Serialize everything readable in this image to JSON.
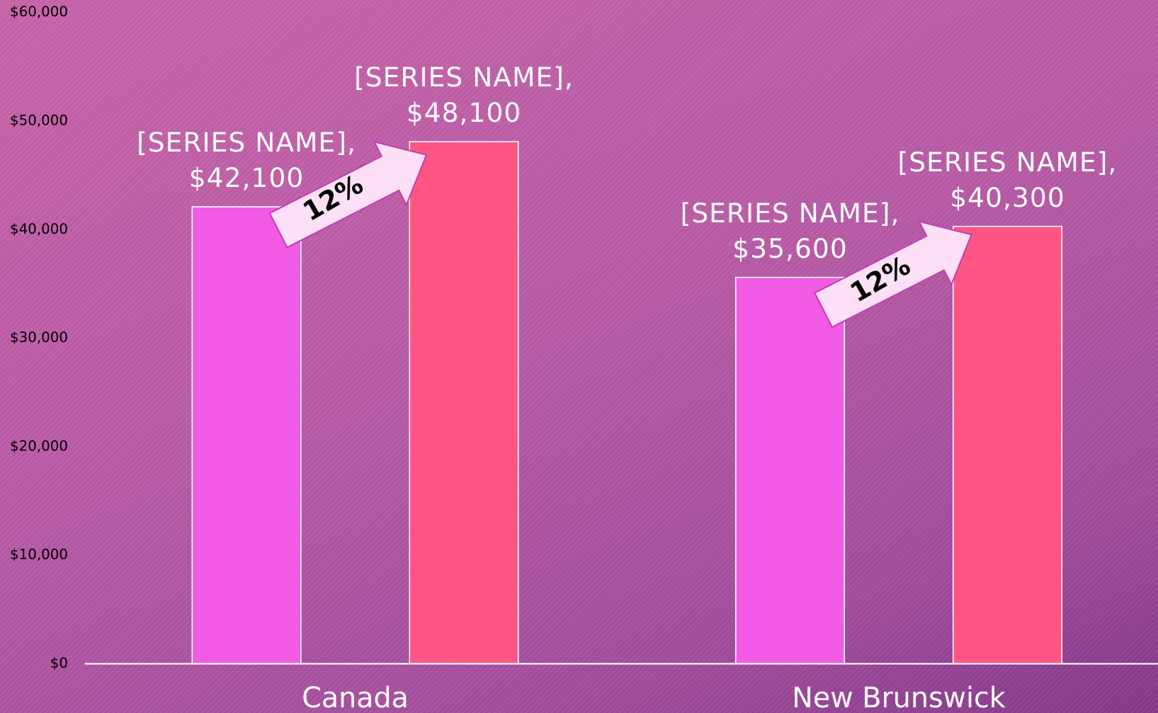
{
  "chart_data": {
    "type": "bar",
    "categories": [
      "Canada",
      "New Brunswick"
    ],
    "series": [
      {
        "color": "#f25be6",
        "values": [
          42100,
          35600
        ],
        "value_labels": [
          "[SERIES NAME],\n$42,100",
          "[SERIES NAME],\n$35,600"
        ]
      },
      {
        "color": "#ff5585",
        "values": [
          48100,
          40300
        ],
        "value_labels": [
          "[SERIES NAME],\n$48,100",
          "[SERIES NAME],\n$40,300"
        ]
      }
    ],
    "ylim": [
      0,
      60000
    ],
    "yticks": [
      {
        "value": 0,
        "label": "$0"
      },
      {
        "value": 10000,
        "label": "$10,000"
      },
      {
        "value": 20000,
        "label": "$20,000"
      },
      {
        "value": 30000,
        "label": "$30,000"
      },
      {
        "value": 40000,
        "label": "$40,000"
      },
      {
        "value": 50000,
        "label": "$50,000"
      },
      {
        "value": 60000,
        "label": "$60,000"
      }
    ],
    "grid": false,
    "annotations": [
      "12%",
      "12%"
    ]
  }
}
